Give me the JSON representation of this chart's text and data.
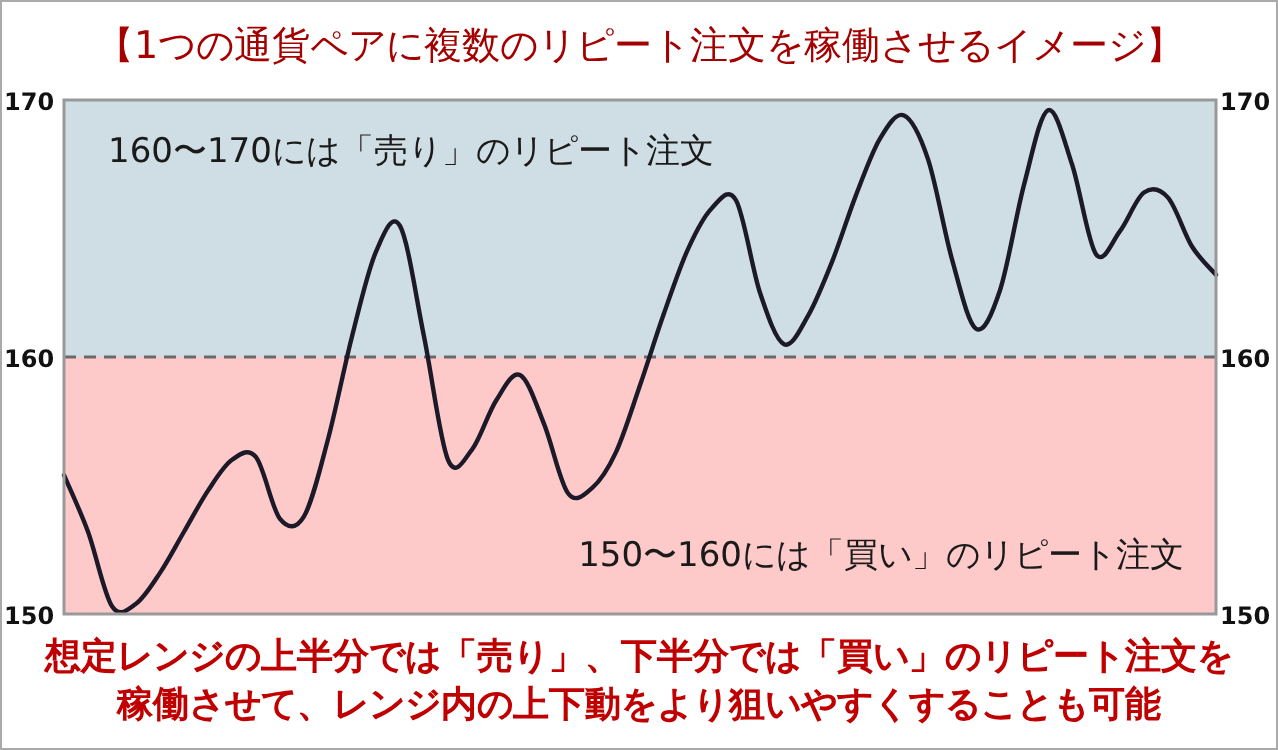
{
  "chart_data": {
    "type": "line",
    "title": "【1つの通貨ペアに複数のリピート注文を稼働させるイメージ】",
    "categories": [
      null,
      null,
      null,
      null,
      null,
      null,
      null,
      null,
      null,
      null,
      null,
      null,
      null,
      null,
      null,
      null,
      null,
      null,
      null,
      null,
      null,
      null,
      null,
      null,
      null,
      null,
      null,
      null,
      null,
      null,
      null,
      null,
      null,
      null,
      null,
      null,
      null,
      null,
      null,
      null,
      null,
      null,
      null,
      null,
      null,
      null,
      null,
      null,
      null
    ],
    "series": [
      {
        "color": "#1c1a28",
        "values": [
          155.4,
          153.2,
          150.3,
          150.4,
          151.6,
          153.2,
          154.8,
          156.0,
          156.1,
          153.7,
          153.8,
          156.8,
          160.8,
          164.1,
          165.1,
          160.8,
          156.0,
          156.4,
          158.3,
          159.3,
          157.4,
          154.7,
          154.9,
          156.3,
          158.9,
          161.7,
          164.2,
          165.8,
          166.1,
          162.5,
          160.5,
          161.6,
          163.7,
          166.3,
          168.5,
          169.4,
          167.7,
          163.8,
          161.1,
          162.6,
          166.7,
          169.6,
          167.5,
          164.0,
          164.9,
          166.4,
          166.2,
          164.3,
          163.2
        ]
      }
    ],
    "ylim": [
      150,
      170
    ],
    "yticks": [
      150,
      160,
      170
    ],
    "y2lim": [
      150,
      170
    ],
    "y2ticks": [
      150,
      160,
      170
    ],
    "ref_lines": [
      {
        "axis": "y",
        "value": 160,
        "color": "#6a6a6a",
        "line_style": "dashed"
      }
    ],
    "bands": [
      {
        "axis": "y",
        "from": 160,
        "to": 170,
        "label": "160〜170には「売り」のリピート注文",
        "color": "#cfdde4"
      },
      {
        "axis": "y",
        "from": 150,
        "to": 160,
        "label": "150〜160には「買い」のリピート注文",
        "color": "#fdc9c9"
      }
    ],
    "annotations": [
      "想定レンジの上半分では「売り」、下半分では「買い」のリピート注文を稼働させて、レンジ内の上下動をより狙いやすくすることも可能"
    ]
  }
}
